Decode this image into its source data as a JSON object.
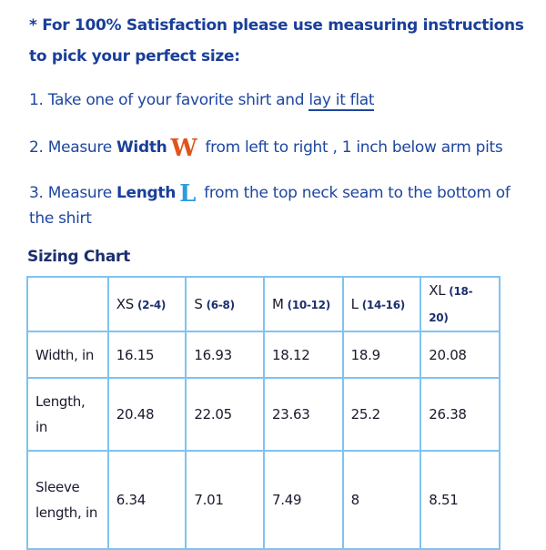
{
  "intro": {
    "line1": "* For 100% Satisfaction please use measuring instructions",
    "line2": "to pick your perfect size:"
  },
  "steps": [
    {
      "prefix": "1. Take one of your favorite shirt and ",
      "link": "lay it flat"
    },
    {
      "prefix": "2. Measure ",
      "bold": "Width",
      "icon": "W",
      "suffix": " from left to right , 1 inch below arm pits"
    },
    {
      "prefix": "3. Measure ",
      "bold": "Length",
      "icon": "L",
      "suffix": " from the top neck seam to the bottom of",
      "cont": "the shirt"
    }
  ],
  "chart": {
    "title": "Sizing Chart",
    "sizes": [
      {
        "s": "XS",
        "r": "(2-4)"
      },
      {
        "s": "S",
        "r": "(6-8)"
      },
      {
        "s": "M",
        "r": "(10-12)"
      },
      {
        "s": "L",
        "r": "(14-16)"
      },
      {
        "s": "XL",
        "r": "(18-20)"
      }
    ],
    "rows": [
      {
        "label": "Width, in",
        "values": [
          "16.15",
          "16.93",
          "18.12",
          "18.9",
          "20.08"
        ]
      },
      {
        "label": "Length, in",
        "values": [
          "20.48",
          "22.05",
          "23.63",
          "25.2",
          "26.38"
        ]
      },
      {
        "label": "Sleeve length, in",
        "values": [
          "6.34",
          "7.01",
          "7.49",
          "8",
          "8.51"
        ]
      }
    ]
  },
  "colors": {
    "text": "#1e46a0",
    "border": "#7fc3f0",
    "width_icon": "#e0541c",
    "length_icon": "#2e9be0"
  }
}
